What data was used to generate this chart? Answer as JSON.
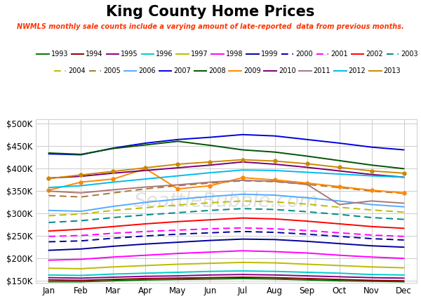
{
  "title": "King County Home Prices",
  "subtitle": "NWMLS monthly sale counts include a varying amount of late-reported  data from previous months.",
  "subtitle_color": "#ff3300",
  "months": [
    "Jan",
    "Feb",
    "Mar",
    "Apr",
    "May",
    "Jun",
    "Jul",
    "Aug",
    "Sep",
    "Oct",
    "Nov",
    "Dec"
  ],
  "ylim": [
    145000,
    510000
  ],
  "yticks": [
    150000,
    200000,
    250000,
    300000,
    350000,
    400000,
    450000,
    500000
  ],
  "series": [
    {
      "label": "1993",
      "color": "#007700",
      "linestyle": "-",
      "linewidth": 1.4,
      "marker": null,
      "dashes": null,
      "data": [
        148000,
        148000,
        150000,
        152000,
        153000,
        154000,
        155000,
        154000,
        152000,
        150000,
        149000,
        148000
      ]
    },
    {
      "label": "1994",
      "color": "#880000",
      "linestyle": "-",
      "linewidth": 1.4,
      "marker": null,
      "dashes": null,
      "data": [
        152000,
        151000,
        153000,
        155000,
        156000,
        157000,
        158000,
        157000,
        155000,
        153000,
        151000,
        150000
      ]
    },
    {
      "label": "1995",
      "color": "#880088",
      "linestyle": "-",
      "linewidth": 1.4,
      "marker": null,
      "dashes": null,
      "data": [
        157000,
        156000,
        158000,
        160000,
        161000,
        163000,
        164000,
        163000,
        161000,
        159000,
        157000,
        156000
      ]
    },
    {
      "label": "1996",
      "color": "#00cccc",
      "linestyle": "-",
      "linewidth": 1.4,
      "marker": null,
      "dashes": null,
      "data": [
        163000,
        162000,
        165000,
        167000,
        169000,
        171000,
        172000,
        171000,
        169000,
        167000,
        164000,
        163000
      ]
    },
    {
      "label": "1997",
      "color": "#bbbb00",
      "linestyle": "-",
      "linewidth": 1.4,
      "marker": null,
      "dashes": null,
      "data": [
        178000,
        177000,
        181000,
        184000,
        187000,
        189000,
        191000,
        190000,
        187000,
        184000,
        181000,
        179000
      ]
    },
    {
      "label": "1998",
      "color": "#ff00ff",
      "linestyle": "-",
      "linewidth": 1.4,
      "marker": null,
      "dashes": null,
      "data": [
        196000,
        198000,
        203000,
        207000,
        211000,
        214000,
        217000,
        215000,
        212000,
        207000,
        203000,
        200000
      ]
    },
    {
      "label": "1999",
      "color": "#000099",
      "linestyle": "-",
      "linewidth": 1.4,
      "marker": null,
      "dashes": null,
      "data": [
        218000,
        221000,
        227000,
        232000,
        236000,
        240000,
        243000,
        242000,
        238000,
        233000,
        228000,
        225000
      ]
    },
    {
      "label": "2000",
      "color": "#000099",
      "linestyle": "--",
      "linewidth": 1.4,
      "marker": null,
      "dashes": [
        5,
        3
      ],
      "data": [
        237000,
        239000,
        245000,
        250000,
        254000,
        257000,
        260000,
        258000,
        254000,
        249000,
        244000,
        241000
      ]
    },
    {
      "label": "2001",
      "color": "#ff00ff",
      "linestyle": "--",
      "linewidth": 1.4,
      "marker": null,
      "dashes": [
        5,
        3
      ],
      "data": [
        249000,
        251000,
        256000,
        260000,
        263000,
        266000,
        268000,
        266000,
        262000,
        257000,
        252000,
        249000
      ]
    },
    {
      "label": "2002",
      "color": "#ff0000",
      "linestyle": "-",
      "linewidth": 1.4,
      "marker": null,
      "dashes": null,
      "data": [
        261000,
        265000,
        271000,
        277000,
        282000,
        286000,
        290000,
        288000,
        283000,
        277000,
        271000,
        267000
      ]
    },
    {
      "label": "2003",
      "color": "#008888",
      "linestyle": "--",
      "linewidth": 1.4,
      "marker": null,
      "dashes": [
        5,
        3
      ],
      "data": [
        280000,
        284000,
        291000,
        297000,
        302000,
        307000,
        311000,
        309000,
        304000,
        298000,
        291000,
        287000
      ]
    },
    {
      "label": "2004",
      "color": "#bbbb00",
      "linestyle": "--",
      "linewidth": 1.4,
      "marker": null,
      "dashes": [
        5,
        3
      ],
      "data": [
        295000,
        299000,
        307000,
        313000,
        319000,
        324000,
        328000,
        326000,
        321000,
        314000,
        308000,
        303000
      ]
    },
    {
      "label": "2005",
      "color": "#aa7733",
      "linestyle": "--",
      "linewidth": 1.4,
      "marker": null,
      "dashes": [
        5,
        3
      ],
      "data": [
        340000,
        337000,
        346000,
        355000,
        362000,
        368000,
        373000,
        371000,
        365000,
        358000,
        350000,
        345000
      ]
    },
    {
      "label": "2006",
      "color": "#55aaff",
      "linestyle": "-",
      "linewidth": 1.4,
      "marker": null,
      "dashes": null,
      "data": [
        307000,
        305000,
        316000,
        325000,
        332000,
        338000,
        343000,
        341000,
        335000,
        328000,
        320000,
        315000
      ]
    },
    {
      "label": "2007",
      "color": "#0000dd",
      "linestyle": "-",
      "linewidth": 1.4,
      "marker": null,
      "dashes": null,
      "data": [
        433000,
        431000,
        446000,
        457000,
        465000,
        470000,
        476000,
        473000,
        465000,
        457000,
        448000,
        442000
      ]
    },
    {
      "label": "2008",
      "color": "#005500",
      "linestyle": "-",
      "linewidth": 1.4,
      "marker": null,
      "dashes": null,
      "data": [
        435000,
        432000,
        445000,
        453000,
        461000,
        452000,
        442000,
        437000,
        428000,
        418000,
        408000,
        400000
      ]
    },
    {
      "label": "2009",
      "color": "#ff8800",
      "linestyle": "-",
      "linewidth": 1.4,
      "marker": "o",
      "markersize": 4,
      "dashes": null,
      "data": [
        352000,
        370000,
        377000,
        400000,
        355000,
        362000,
        380000,
        375000,
        368000,
        360000,
        352000,
        346000
      ]
    },
    {
      "label": "2010",
      "color": "#770077",
      "linestyle": "-",
      "linewidth": 1.4,
      "marker": null,
      "dashes": null,
      "data": [
        379000,
        383000,
        390000,
        396000,
        402000,
        408000,
        415000,
        410000,
        403000,
        395000,
        387000,
        381000
      ]
    },
    {
      "label": "2011",
      "color": "#aa7777",
      "linestyle": "-",
      "linewidth": 1.4,
      "marker": null,
      "dashes": null,
      "data": [
        350000,
        346000,
        353000,
        359000,
        364000,
        370000,
        374000,
        372000,
        365000,
        320000,
        328000,
        323000
      ]
    },
    {
      "label": "2012",
      "color": "#00bbee",
      "linestyle": "-",
      "linewidth": 1.4,
      "marker": null,
      "dashes": null,
      "data": [
        358000,
        362000,
        370000,
        377000,
        384000,
        391000,
        397000,
        396000,
        392000,
        388000,
        384000,
        381000
      ]
    },
    {
      "label": "2013",
      "color": "#cc8800",
      "linestyle": "-",
      "linewidth": 1.4,
      "marker": "o",
      "markersize": 4,
      "dashes": null,
      "data": [
        378000,
        386000,
        394000,
        402000,
        410000,
        415000,
        420000,
        417000,
        411000,
        403000,
        395000,
        390000
      ]
    }
  ],
  "watermark": "SeattleBubble.com",
  "background_color": "#ffffff",
  "grid_color": "#cccccc"
}
